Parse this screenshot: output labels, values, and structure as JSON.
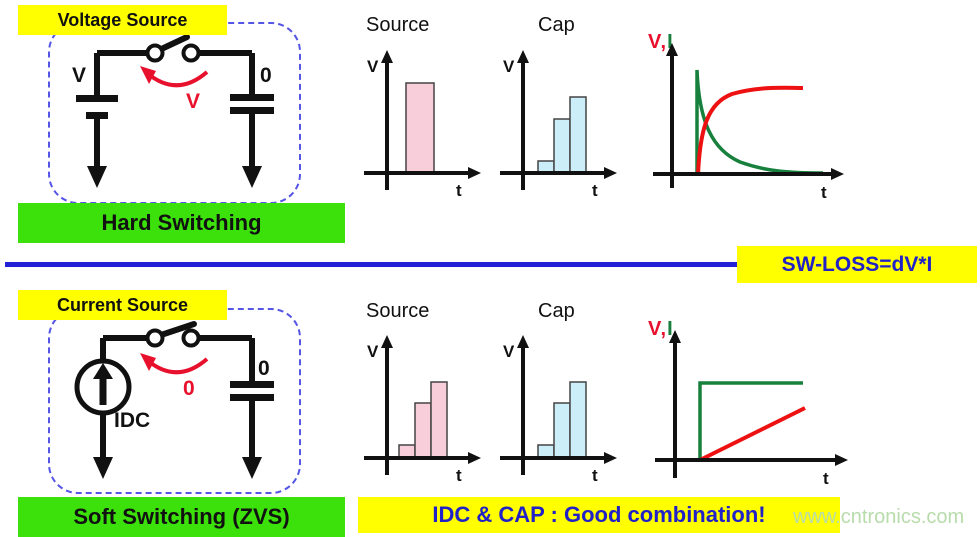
{
  "colors": {
    "yellow": "#ffff00",
    "green_box": "#3ce00a",
    "blue_text": "#2121c8",
    "divider_blue": "#2222d4",
    "dashed_blue": "#5555e6",
    "red": "#e8112d",
    "curve_red": "#ee1111",
    "curve_green": "#17803c",
    "bar_pink": "#f8cedb",
    "bar_blue": "#cceef8",
    "bar_stroke": "#444444",
    "ink": "#111111",
    "watermark": "#b8dcab"
  },
  "hard": {
    "tag": "Voltage Source",
    "caption": "Hard Switching",
    "circuit": {
      "left_label": "V",
      "right_label": "0",
      "arc_label": "V"
    },
    "source_chart": {
      "title": "Source",
      "ylabel": "V",
      "xlabel": "t",
      "values": [
        0.76
      ]
    },
    "cap_chart": {
      "title": "Cap",
      "ylabel": "V",
      "xlabel": "t",
      "values": [
        0.1,
        0.46,
        0.64
      ]
    },
    "vi_chart": {
      "v_label": "V",
      "comma": ",",
      "i_label": "I",
      "xlabel": "t"
    }
  },
  "soft": {
    "tag": "Current Source",
    "caption": "Soft Switching (ZVS)",
    "circuit": {
      "source_label": "IDC",
      "right_label": "0",
      "arc_label": "0"
    },
    "source_chart": {
      "title": "Source",
      "ylabel": "V",
      "xlabel": "t",
      "values": [
        0.11,
        0.47,
        0.64
      ]
    },
    "cap_chart": {
      "title": "Cap",
      "ylabel": "V",
      "xlabel": "t",
      "values": [
        0.11,
        0.47,
        0.64
      ]
    },
    "vi_chart": {
      "v_label": "V",
      "comma": ",",
      "i_label": "I",
      "xlabel": "t"
    },
    "note": "IDC & CAP : Good combination!"
  },
  "divider": {
    "label": "SW-LOSS=dV*I"
  },
  "watermark": "www.cntronics.com",
  "chart_data": [
    {
      "id": "hard-source",
      "type": "bar",
      "title": "Source",
      "xlabel": "t",
      "ylabel": "V",
      "values_rel": [
        0.76
      ],
      "bar_color": "pink",
      "note": "single tall voltage pulse from source"
    },
    {
      "id": "hard-cap",
      "type": "bar",
      "title": "Cap",
      "xlabel": "t",
      "ylabel": "V",
      "values_rel": [
        0.1,
        0.46,
        0.64
      ],
      "bar_color": "light-blue",
      "note": "cap voltage builds in steps"
    },
    {
      "id": "hard-vi",
      "type": "line",
      "xlabel": "t",
      "series": [
        {
          "name": "V",
          "color": "red",
          "shape": "exponential rise to saturation"
        },
        {
          "name": "I",
          "color": "green",
          "shape": "instant spike then exponential decay to zero"
        }
      ]
    },
    {
      "id": "soft-source",
      "type": "bar",
      "title": "Source",
      "xlabel": "t",
      "ylabel": "V",
      "values_rel": [
        0.11,
        0.47,
        0.64
      ],
      "bar_color": "pink",
      "note": "source voltage builds in steps"
    },
    {
      "id": "soft-cap",
      "type": "bar",
      "title": "Cap",
      "xlabel": "t",
      "ylabel": "V",
      "values_rel": [
        0.11,
        0.47,
        0.64
      ],
      "bar_color": "light-blue",
      "note": "cap voltage builds in steps"
    },
    {
      "id": "soft-vi",
      "type": "line",
      "xlabel": "t",
      "series": [
        {
          "name": "V",
          "color": "red",
          "shape": "linear ramp"
        },
        {
          "name": "I",
          "color": "green",
          "shape": "step to constant level"
        }
      ]
    }
  ]
}
